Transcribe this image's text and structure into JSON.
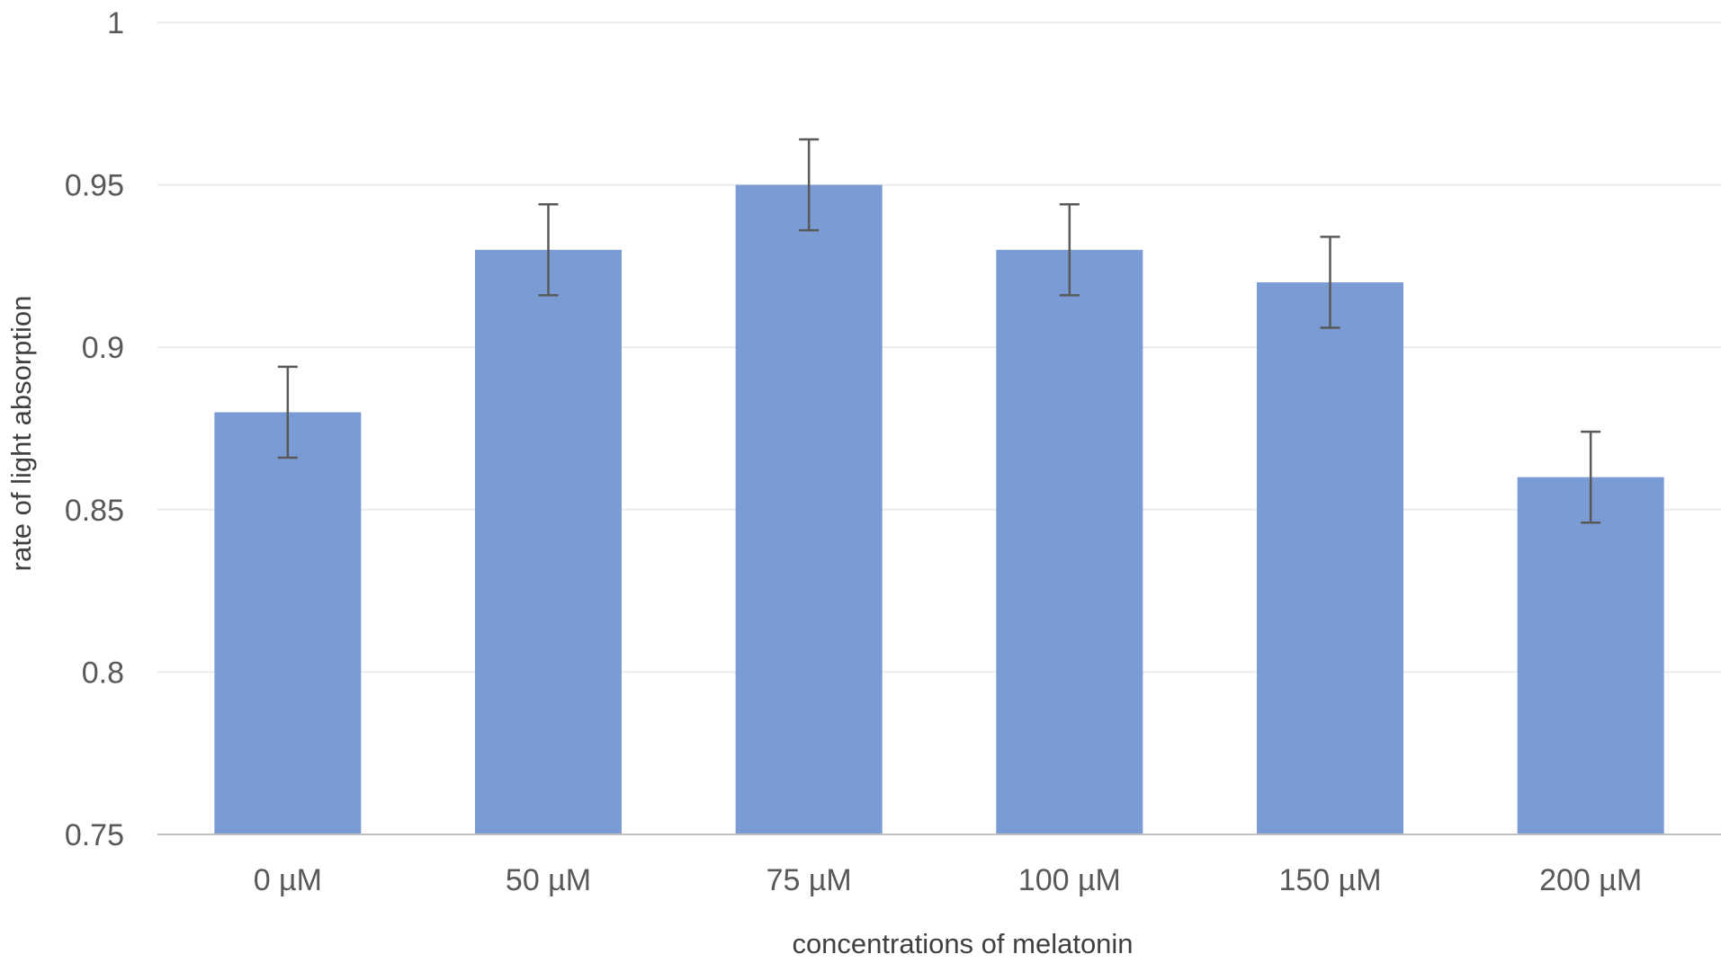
{
  "chart_data": {
    "type": "bar",
    "title": "",
    "xlabel": "concentrations of melatonin",
    "ylabel": "rate of light absorption",
    "categories": [
      "0 µM",
      "50 µM",
      "75 µM",
      "100 µM",
      "150 µM",
      "200 µM"
    ],
    "series": [
      {
        "values": [
          0.88,
          0.93,
          0.95,
          0.93,
          0.92,
          0.86
        ],
        "error": [
          0.014,
          0.014,
          0.014,
          0.014,
          0.014,
          0.014
        ]
      }
    ],
    "ylim": [
      0.75,
      1
    ],
    "yticks": [
      "0.75",
      "0.8",
      "0.85",
      "0.9",
      "0.95",
      "1"
    ],
    "grid": true,
    "legend": "none",
    "colors": {
      "bar": "#7a9bd4",
      "error_bar": "#595959",
      "gridline": "#ececec",
      "axis": "#bfbfbf"
    }
  }
}
